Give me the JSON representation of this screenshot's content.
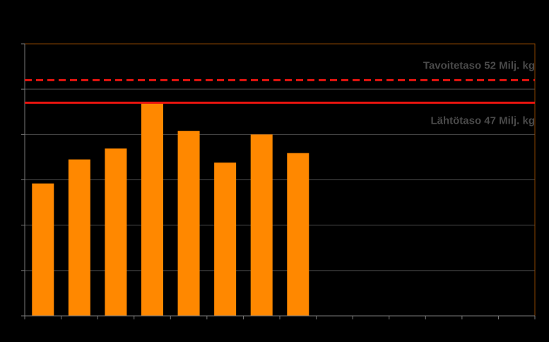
{
  "chart_data": {
    "type": "bar",
    "title": "",
    "xlabel": "",
    "ylabel": "",
    "categories": [
      "",
      "",
      "",
      "",
      "",
      "",
      "",
      "",
      "",
      "",
      "",
      "",
      "",
      ""
    ],
    "values": [
      29.2,
      34.5,
      36.9,
      47.0,
      40.8,
      33.8,
      40.0,
      35.9,
      null,
      null,
      null,
      null,
      null,
      null
    ],
    "ylim": [
      0,
      60
    ],
    "y_gridline_step": 10,
    "grid": true,
    "reference_lines": [
      {
        "label": "Tavoitetaso 52 Milj. kg",
        "value": 52,
        "style": "dashed",
        "color": "#e8140f"
      },
      {
        "label": "Lähtötaso 47 Milj. kg",
        "value": 47,
        "style": "solid",
        "color": "#e8140f"
      }
    ],
    "colors": {
      "bar": "#ff8800",
      "background": "#000000",
      "plot_border": "#8a4500",
      "gridline": "#4d4d4d",
      "axis": "#7a7a7a",
      "label_text": "#4a4a4a"
    }
  }
}
